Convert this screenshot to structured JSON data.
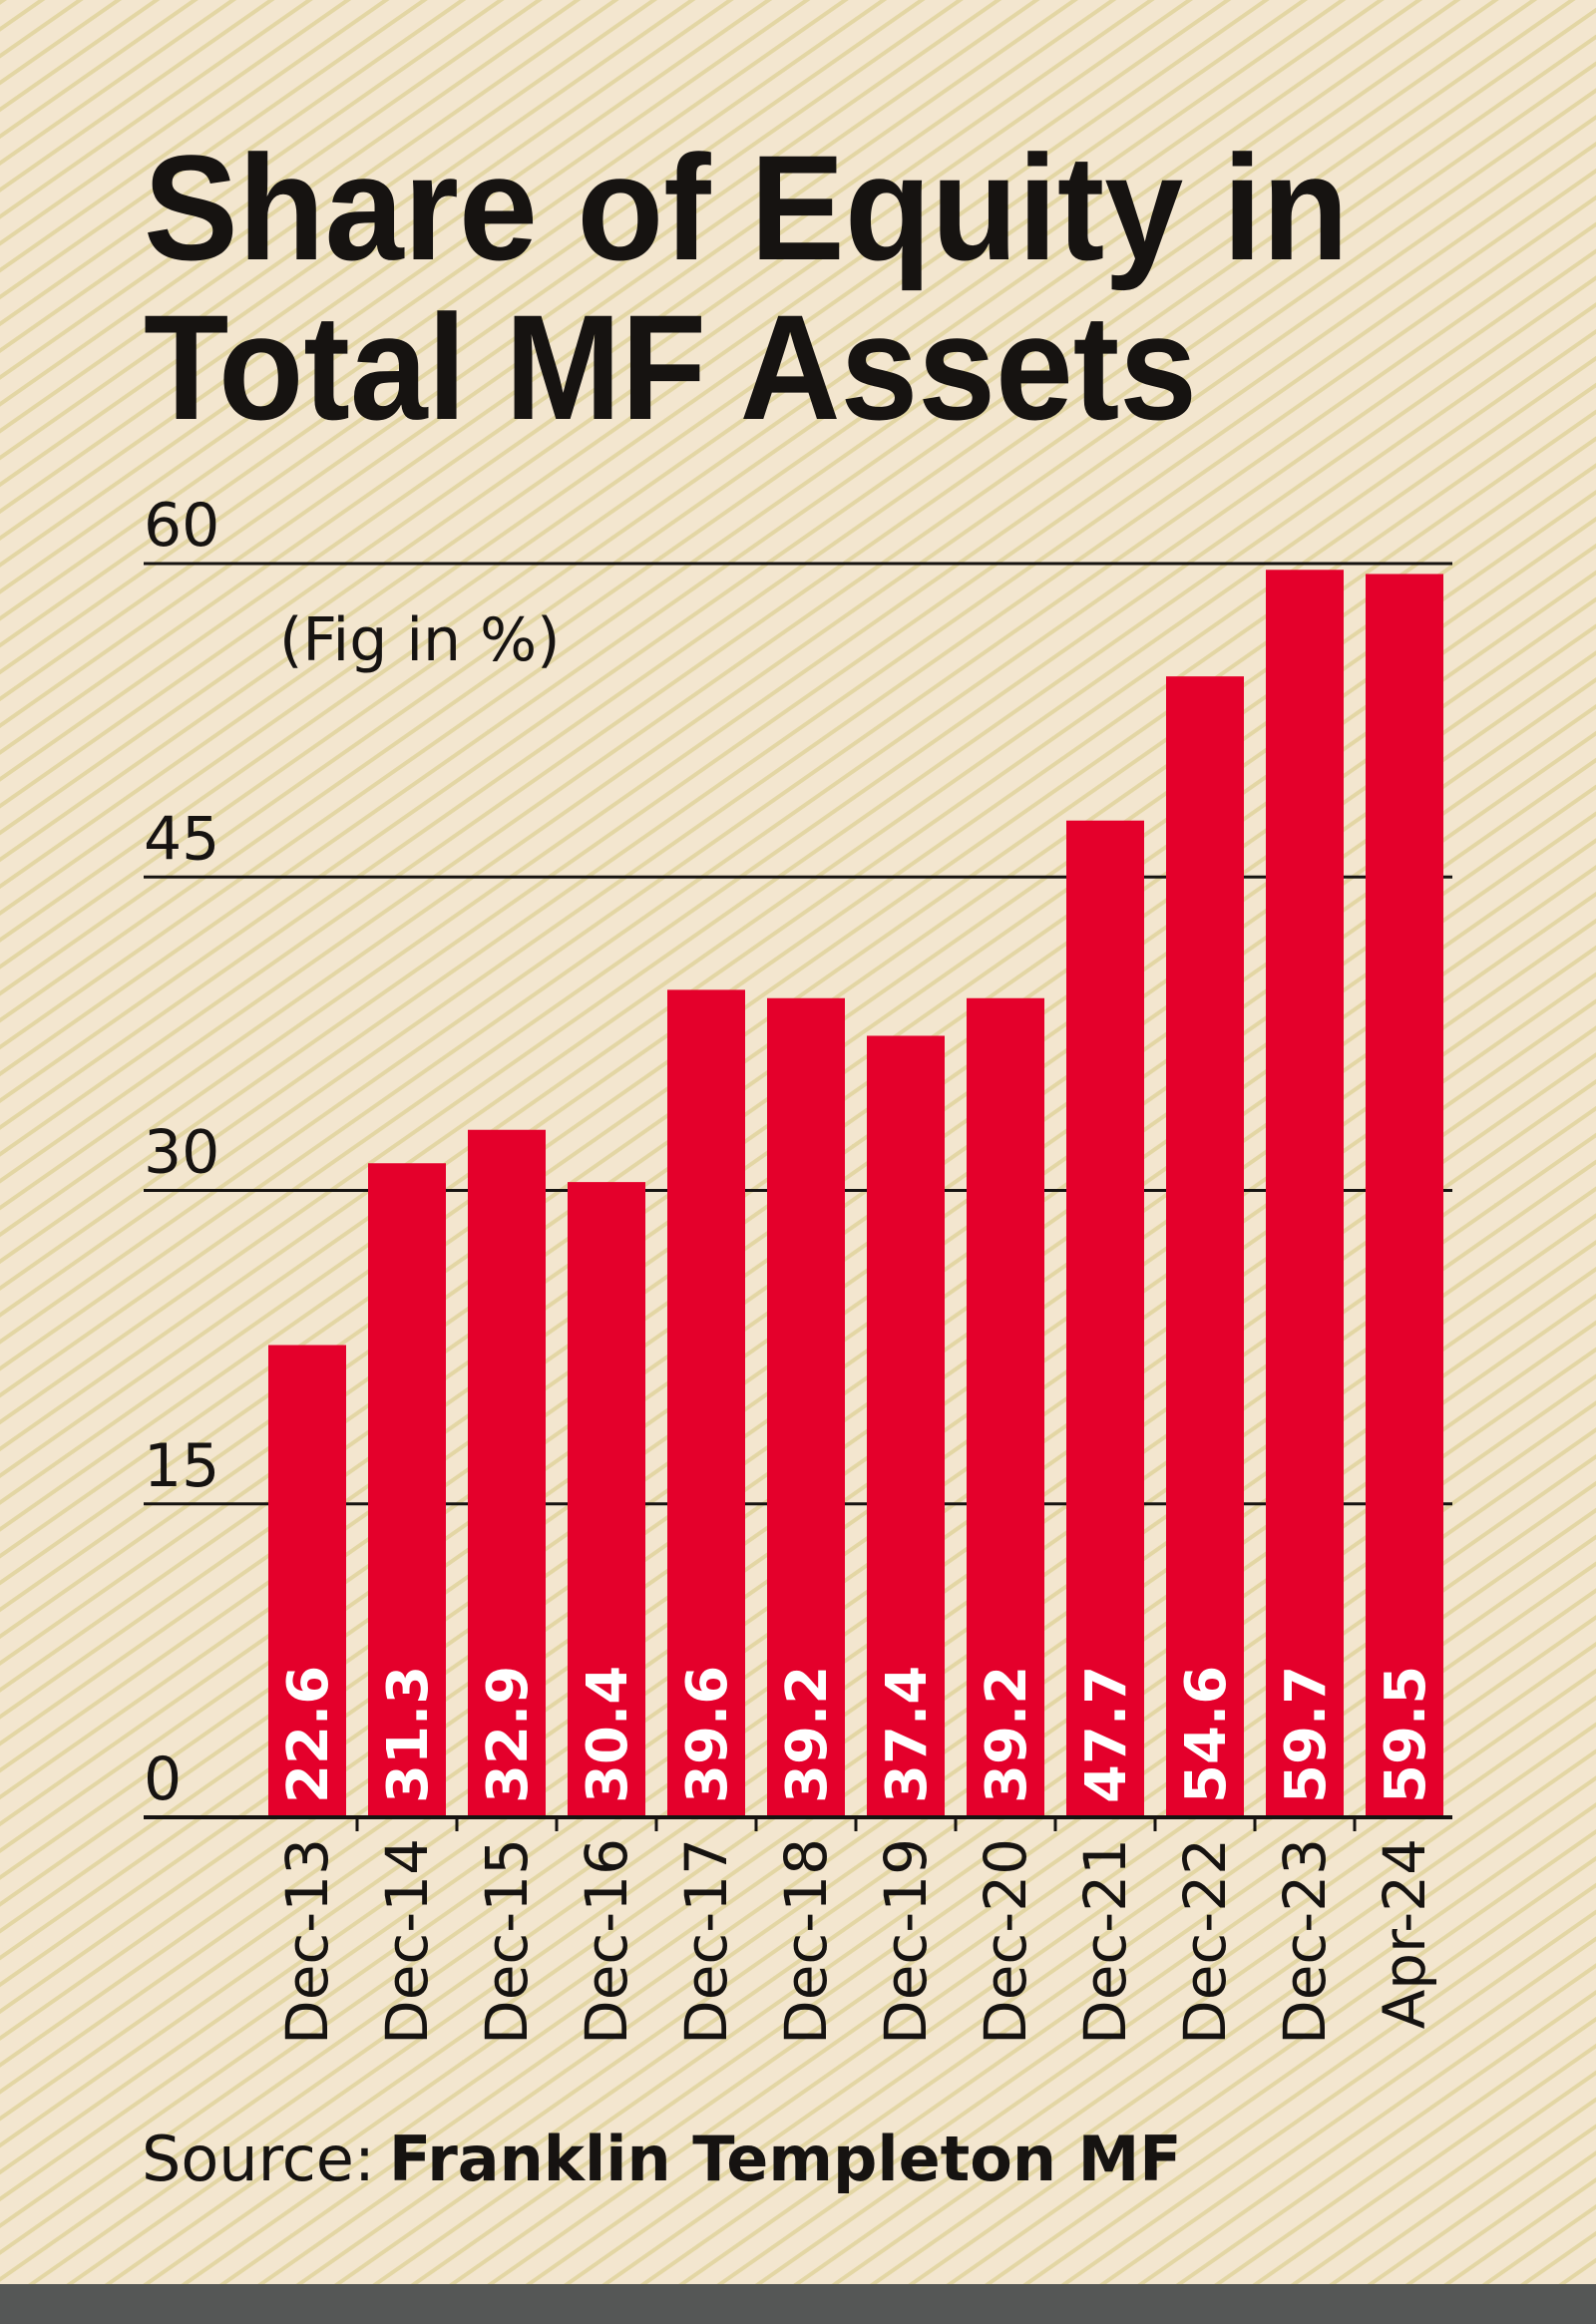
{
  "chart_data": {
    "type": "bar",
    "title": "Share of Equity in Total MF Assets",
    "title_lines": [
      "Share of Equity in",
      "Total MF Assets"
    ],
    "unit_note": "(Fig in %)",
    "categories": [
      "Dec-13",
      "Dec-14",
      "Dec-15",
      "Dec-16",
      "Dec-17",
      "Dec-18",
      "Dec-19",
      "Dec-20",
      "Dec-21",
      "Dec-22",
      "Dec-23",
      "Apr-24"
    ],
    "values": [
      22.6,
      31.3,
      32.9,
      30.4,
      39.6,
      39.2,
      37.4,
      39.2,
      47.7,
      54.6,
      59.7,
      59.5
    ],
    "value_labels": [
      "22.6",
      "31.3",
      "32.9",
      "30.4",
      "39.6",
      "39.2",
      "37.4",
      "39.2",
      "47.7",
      "54.6",
      "59.7",
      "59.5"
    ],
    "ylim": [
      0,
      60
    ],
    "yticks": [
      "0",
      "15",
      "30",
      "45",
      "60"
    ],
    "grid": true,
    "xlabel": "",
    "ylabel": "",
    "source_prefix": "Source:",
    "source_name": "Franklin Templeton MF",
    "colors": {
      "bar": "#e4002b",
      "background": "#f3e6cf",
      "stripe": "#e3d6a4",
      "text": "#161311",
      "footer": "#555756"
    }
  }
}
